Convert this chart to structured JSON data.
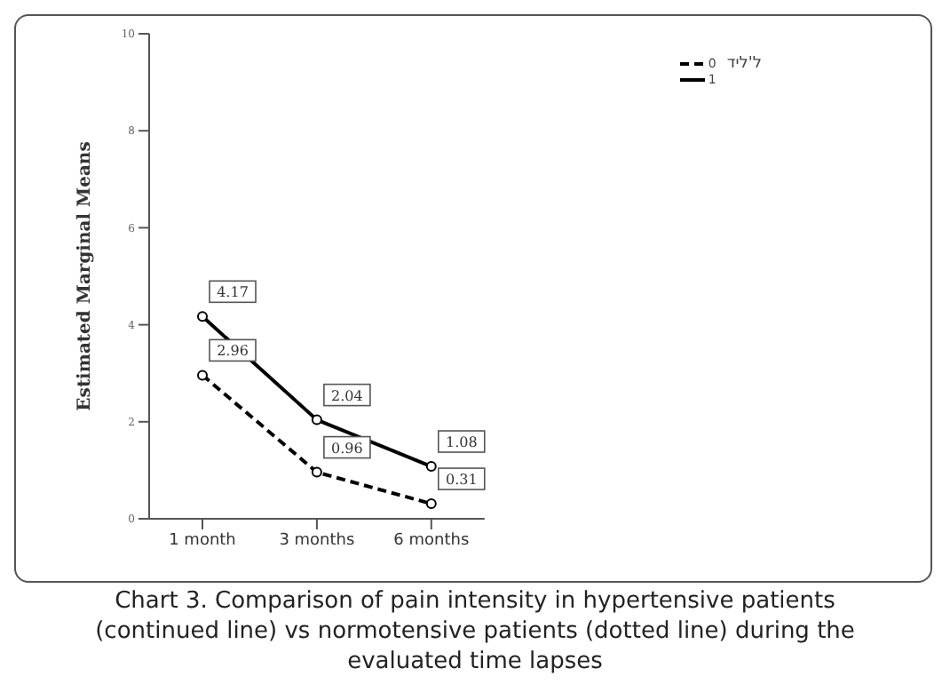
{
  "chart_data": {
    "type": "line",
    "ylabel": "Estimated Marginal Means",
    "legend_title": "ל'ליד",
    "legend": "top right",
    "categories": [
      "1 month",
      "3 months",
      "6 months"
    ],
    "series": [
      {
        "name": "0",
        "color": "#000000",
        "line_style": "dashed",
        "values": [
          2.96,
          0.96,
          0.31
        ]
      },
      {
        "name": "1",
        "color": "#000000",
        "line_style": "solid",
        "values": [
          4.17,
          2.04,
          1.08
        ]
      }
    ],
    "ylim": [
      0,
      10
    ],
    "yticks": [
      0,
      2,
      4,
      6,
      8,
      10
    ],
    "marker": "circle",
    "data_labels": true,
    "grid": false,
    "annotations": [
      "Chart 3. Comparison of pain intensity in hypertensive patients (continued line) vs normotensive patients (dotted line) during the evaluated time lapses"
    ]
  }
}
